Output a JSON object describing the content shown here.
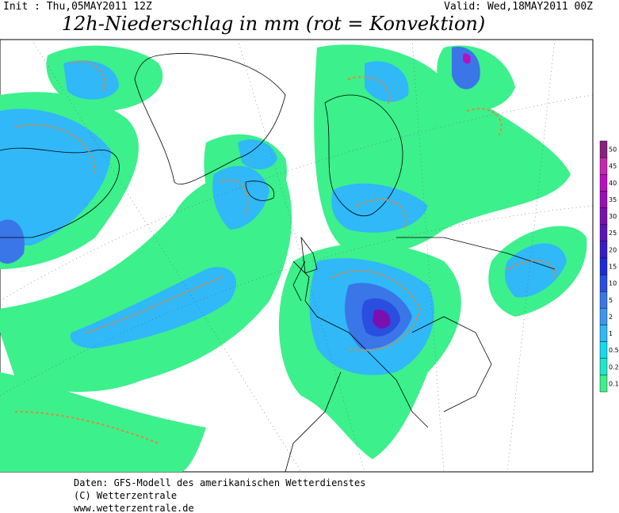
{
  "header": {
    "init": "Init : Thu,05MAY2011 12Z",
    "valid": "Valid: Wed,18MAY2011 00Z",
    "title": "12h-Niederschlag in mm (rot = Konvektion)"
  },
  "legend": [
    {
      "label": "0.1",
      "color": "#3cf08c"
    },
    {
      "label": "0.2",
      "color": "#22e6c8"
    },
    {
      "label": "0.5",
      "color": "#18d8f0"
    },
    {
      "label": "1",
      "color": "#30b8f8"
    },
    {
      "label": "2",
      "color": "#3c96f0"
    },
    {
      "label": "5",
      "color": "#3a76e8"
    },
    {
      "label": "10",
      "color": "#2a4ee0"
    },
    {
      "label": "15",
      "color": "#1e2cd8"
    },
    {
      "label": "20",
      "color": "#3a1cc8"
    },
    {
      "label": "25",
      "color": "#5a14b8"
    },
    {
      "label": "30",
      "color": "#7a10b0"
    },
    {
      "label": "35",
      "color": "#9a10b8"
    },
    {
      "label": "40",
      "color": "#b810c0"
    },
    {
      "label": "45",
      "color": "#c828b0"
    },
    {
      "label": "50",
      "color": "#8a2080"
    }
  ],
  "footer": [
    "Daten: GFS-Modell des amerikanischen Wetterdienstes",
    "(C) Wetterzentrale",
    "www.wetterzentrale.de"
  ]
}
